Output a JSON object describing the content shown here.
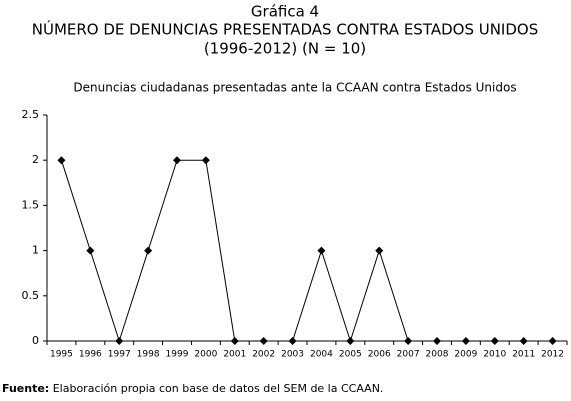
{
  "chart_data": {
    "type": "line",
    "title": "Gráfica 4",
    "subtitle": "NÚMERO DE DENUNCIAS PRESENTADAS CONTRA ESTADOS UNIDOS",
    "subtitle2": "(1996-2012) (N = 10)",
    "chart_title": "Denuncias ciudadanas presentadas ante la CCAAN contra Estados Unidos",
    "source_label": "Fuente:",
    "source": "Elaboración propia con base de datos del SEM de la CCAAN.",
    "categories": [
      "1995",
      "1996",
      "1997",
      "1998",
      "1999",
      "2000",
      "2001",
      "2002",
      "2003",
      "2004",
      "2005",
      "2006",
      "2007",
      "2008",
      "2009",
      "2010",
      "2011",
      "2012"
    ],
    "values": [
      2,
      1,
      0,
      1,
      2,
      2,
      0,
      0,
      0,
      1,
      0,
      1,
      0,
      0,
      0,
      0,
      0,
      0
    ],
    "color": "#000000",
    "ylim": [
      0,
      2.5
    ],
    "yticks": [
      0,
      0.5,
      1,
      1.5,
      2,
      2.5
    ],
    "grid": false
  }
}
